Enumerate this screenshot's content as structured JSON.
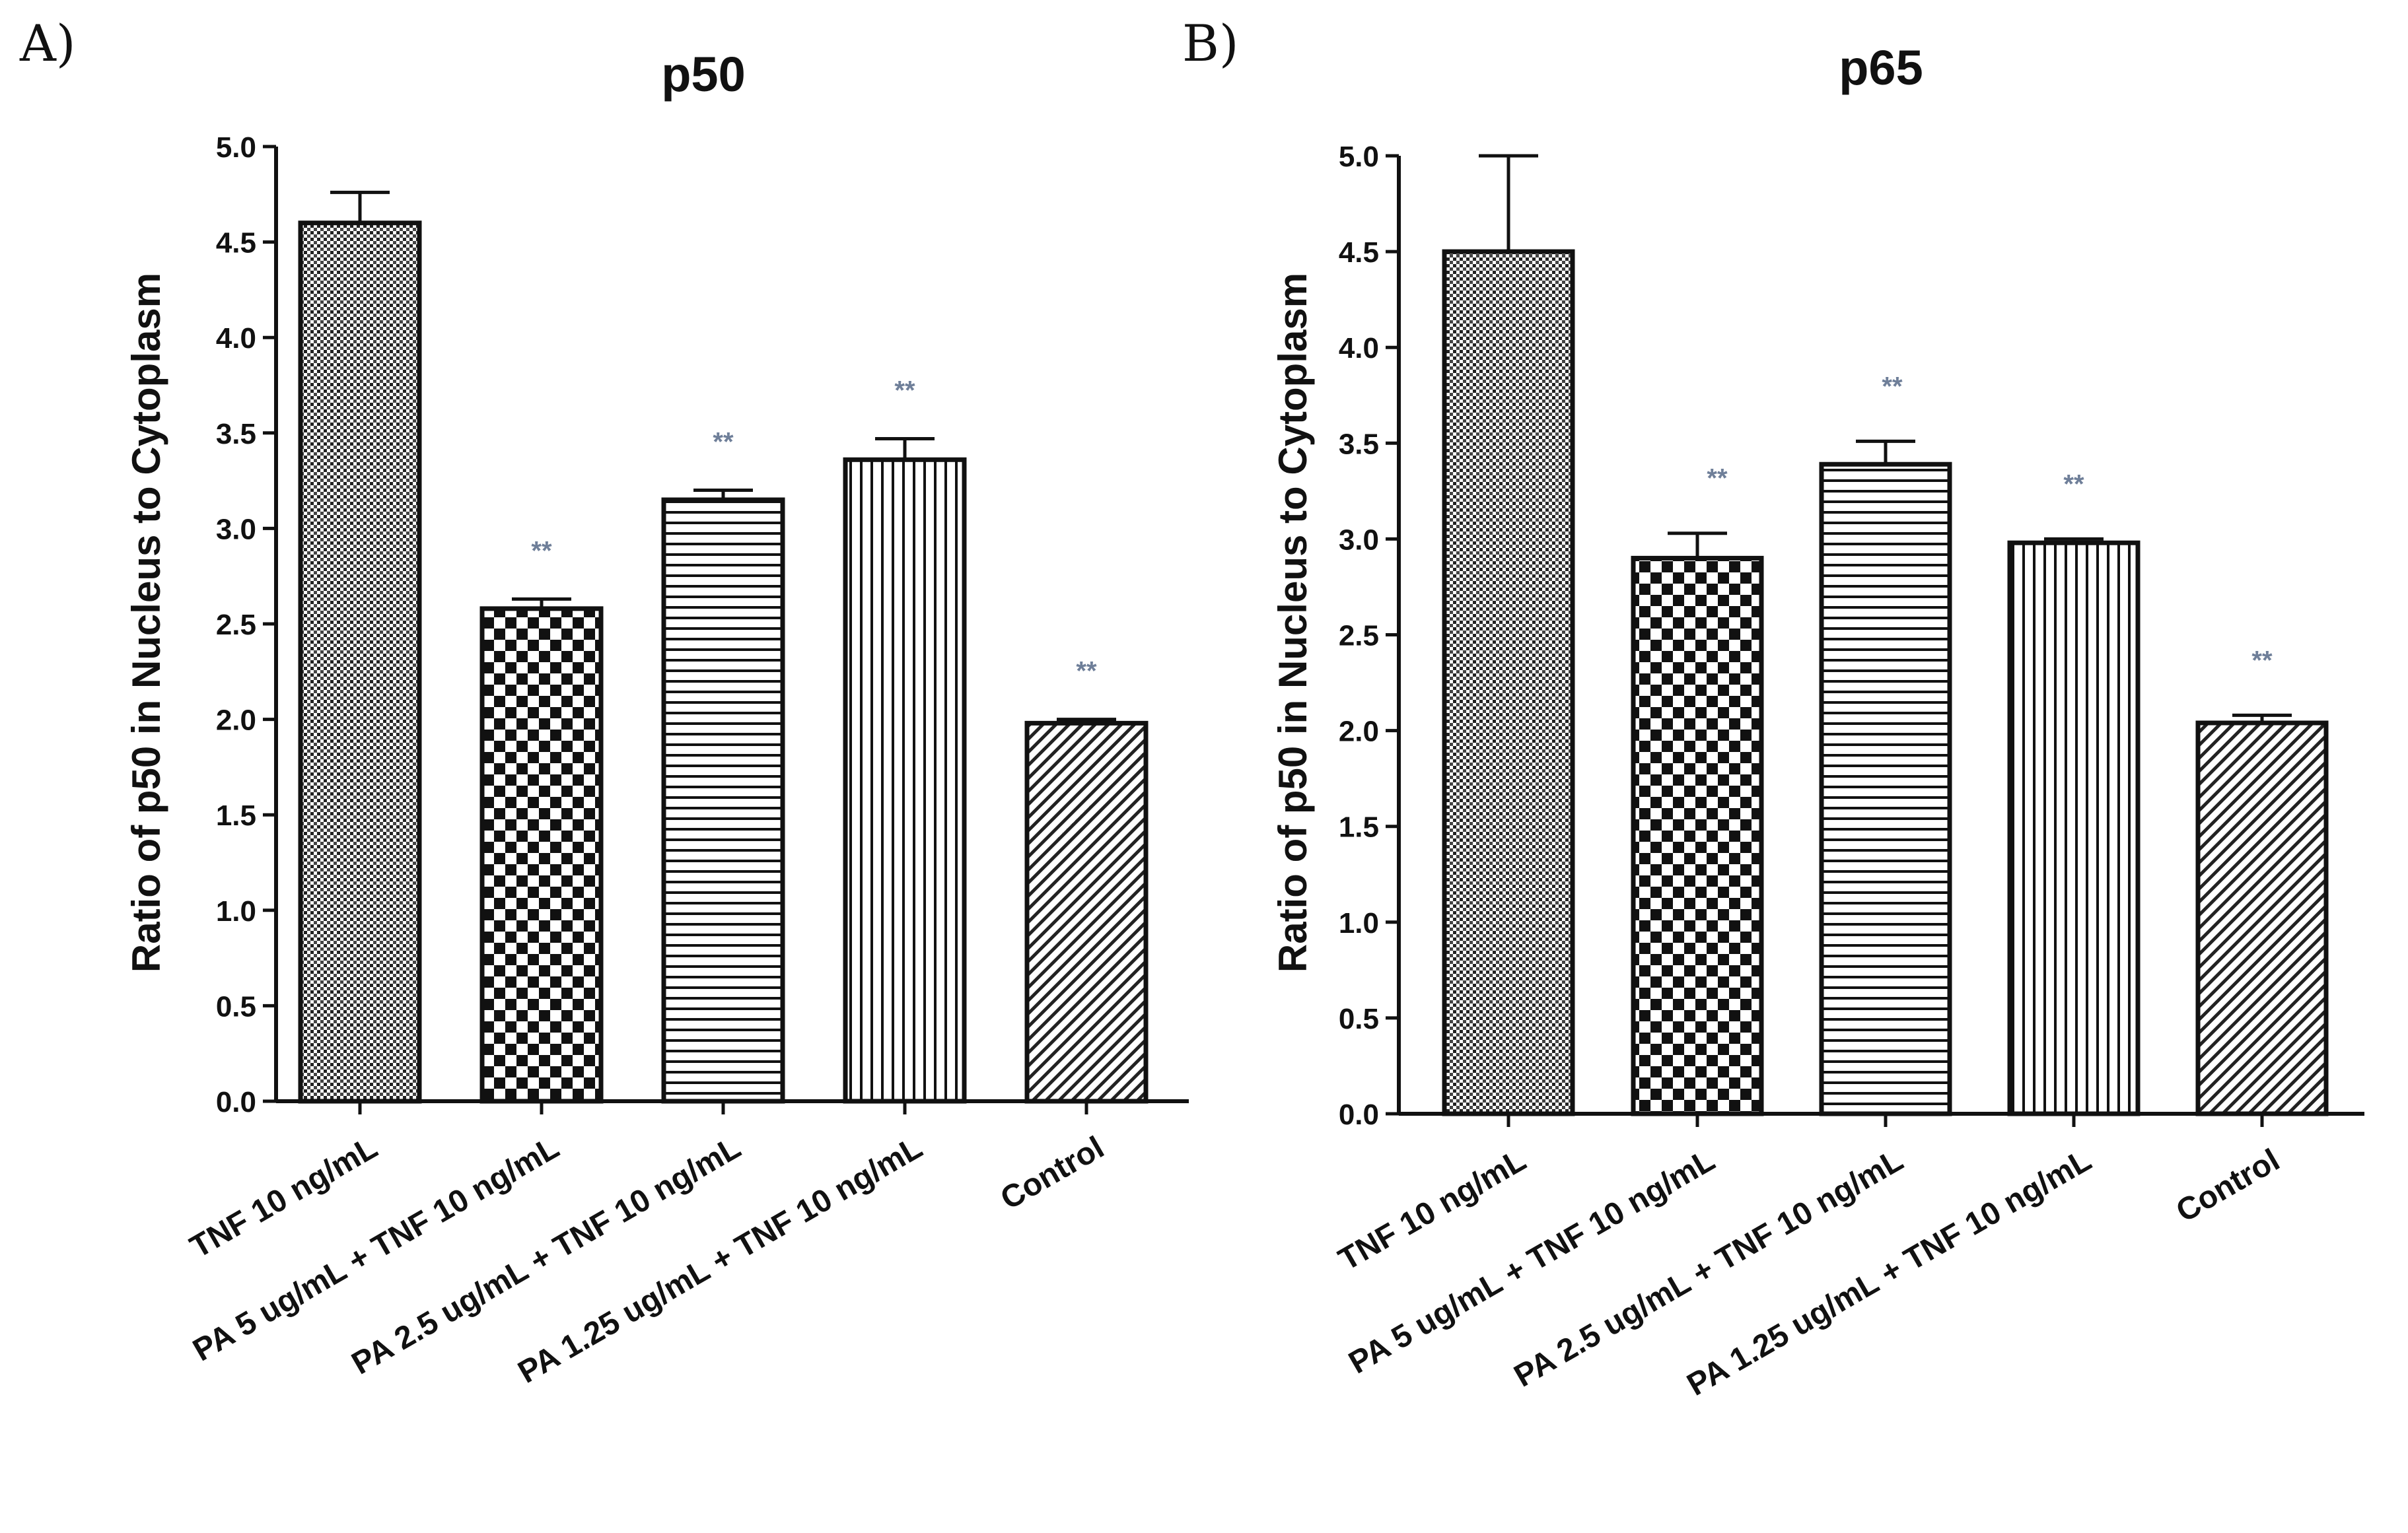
{
  "chart_data": [
    {
      "type": "bar",
      "panel": "A)",
      "title": "p50",
      "xlabel": "",
      "ylabel": "Ratio of p50 in Nucleus to Cytoplasm",
      "ylim": [
        0,
        5.0
      ],
      "yticks": [
        "0.0",
        "0.5",
        "1.0",
        "1.5",
        "2.0",
        "2.5",
        "3.0",
        "3.5",
        "4.0",
        "4.5",
        "5.0"
      ],
      "grid": false,
      "categories": [
        "TNF 10 ng/mL",
        "PA 5 ug/mL + TNF 10 ng/mL",
        "PA 2.5 ug/mL + TNF 10 ng/mL",
        "PA 1.25 ug/mL + TNF 10 ng/mL",
        "Control"
      ],
      "values": [
        4.6,
        2.58,
        3.15,
        3.36,
        1.98
      ],
      "errors": [
        0.16,
        0.05,
        0.05,
        0.11,
        0.02
      ],
      "significance": [
        "",
        "**",
        "**",
        "**",
        "**"
      ],
      "patterns": [
        "dots",
        "checker",
        "hlines",
        "vlines",
        "diagonal"
      ]
    },
    {
      "type": "bar",
      "panel": "B)",
      "title": "p65",
      "xlabel": "",
      "ylabel": "Ratio of p50 in Nucleus to Cytoplasm",
      "ylim": [
        0,
        5.0
      ],
      "yticks": [
        "0.0",
        "0.5",
        "1.0",
        "1.5",
        "2.0",
        "2.5",
        "3.0",
        "3.5",
        "4.0",
        "4.5",
        "5.0"
      ],
      "grid": false,
      "categories": [
        "TNF 10 ng/mL",
        "PA 5 ug/mL + TNF 10 ng/mL",
        "PA 2.5 ug/mL + TNF 10 ng/mL",
        "PA 1.25 ug/mL + TNF 10 ng/mL",
        "Control"
      ],
      "values": [
        4.5,
        2.9,
        3.39,
        2.98,
        2.04
      ],
      "errors": [
        0.5,
        0.13,
        0.12,
        0.02,
        0.04
      ],
      "significance": [
        "",
        "**",
        "**",
        "**",
        "**"
      ],
      "patterns": [
        "dots",
        "checker",
        "hlines",
        "vlines",
        "diagonal"
      ]
    }
  ]
}
